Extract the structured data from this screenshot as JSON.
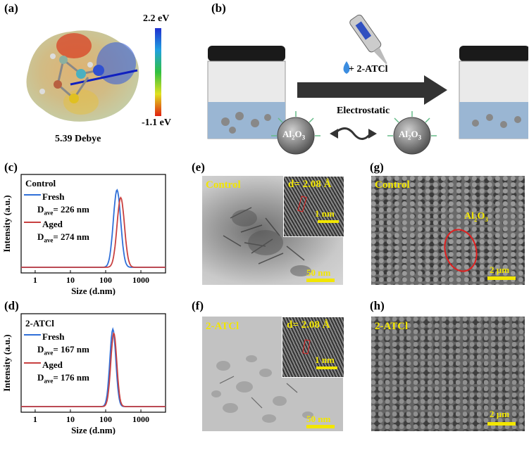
{
  "panels": {
    "a": {
      "label": "(a)",
      "colorbar_max": "2.2 eV",
      "colorbar_min": "-1.1 eV",
      "dipole": "5.39 Debye"
    },
    "b": {
      "label": "(b)",
      "add_text": "+ 2-ATCl",
      "electrostatic": "Electrostatic",
      "particle_text": "Al",
      "particle_sub": "2",
      "particle_text2": "O",
      "particle_sub2": "3"
    },
    "c": {
      "label": "(c)",
      "group": "Control",
      "fresh": "Fresh",
      "fresh_d": "D",
      "fresh_sub": "ave",
      "fresh_val": "= 226 nm",
      "aged": "Aged",
      "aged_d": "D",
      "aged_sub": "ave",
      "aged_val": "= 274 nm"
    },
    "d": {
      "label": "(d)",
      "group": "2-ATCl",
      "fresh": "Fresh",
      "fresh_d": "D",
      "fresh_sub": "ave",
      "fresh_val": "= 167 nm",
      "aged": "Aged",
      "aged_d": "D",
      "aged_sub": "ave",
      "aged_val": "= 176 nm"
    },
    "e": {
      "label": "(e)",
      "group": "Control",
      "d_spacing": "d= 2.08 Å",
      "inset_scale": "1 nm",
      "scale": "50 nm"
    },
    "f": {
      "label": "(f)",
      "group": "2-ATCl",
      "d_spacing": "d= 2.08 Å",
      "inset_scale": "1 nm",
      "scale": "50 nm"
    },
    "g": {
      "label": "(g)",
      "group": "Control",
      "annot_main": "Al",
      "annot_sub1": "2",
      "annot_mid": "O",
      "annot_sub2": "3",
      "scale": "2 µm"
    },
    "h": {
      "label": "(h)",
      "group": "2-ATCl",
      "scale": "2 µm"
    }
  },
  "chart_data": [
    {
      "type": "line",
      "panel": "c",
      "title": "Control",
      "xlabel": "Size (d.nm)",
      "ylabel": "Intensity (a.u.)",
      "xscale": "log",
      "xlim": [
        0.4,
        5000
      ],
      "xticks": [
        1,
        10,
        100,
        1000
      ],
      "xtick_labels": [
        "1",
        "10",
        "100",
        "1000"
      ],
      "series": [
        {
          "name": "Fresh",
          "color": "#2f6fd8",
          "center": 210,
          "width": 0.105,
          "peak": 1.0
        },
        {
          "name": "Aged",
          "color": "#c84040",
          "center": 268,
          "width": 0.105,
          "peak": 0.9
        }
      ]
    },
    {
      "type": "line",
      "panel": "d",
      "title": "2-ATCl",
      "xlabel": "Size (d.nm)",
      "ylabel": "Intensity (a.u.)",
      "xscale": "log",
      "xlim": [
        0.4,
        5000
      ],
      "xticks": [
        1,
        10,
        100,
        1000
      ],
      "xtick_labels": [
        "1",
        "10",
        "100",
        "1000"
      ],
      "series": [
        {
          "name": "Fresh",
          "color": "#2f6fd8",
          "center": 160,
          "width": 0.085,
          "peak": 1.0
        },
        {
          "name": "Aged",
          "color": "#c84040",
          "center": 170,
          "width": 0.085,
          "peak": 0.95
        }
      ]
    }
  ]
}
